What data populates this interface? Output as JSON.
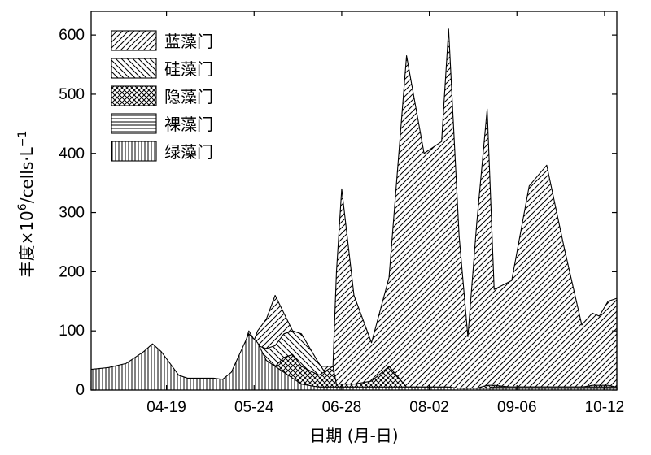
{
  "chart_data": {
    "type": "area",
    "xlabel": "日期 (月-日)",
    "ylabel_main": "丰度×10",
    "ylabel_exp": "6",
    "ylabel_unit": "/cells·L",
    "ylabel_unit_exp": "−1",
    "ylim": [
      0,
      640
    ],
    "yticks": [
      0,
      100,
      200,
      300,
      400,
      500,
      600
    ],
    "xlim": [
      0,
      30
    ],
    "xtick_positions": [
      4.3,
      9.3,
      14.3,
      19.3,
      24.3,
      29.3
    ],
    "xtick_labels": [
      "04-19",
      "05-24",
      "06-28",
      "08-02",
      "09-06",
      "10-12"
    ],
    "grid": false,
    "legend_position": "top-left",
    "x": [
      0,
      1,
      2,
      3,
      3.5,
      4,
      5,
      5.5,
      6,
      7,
      7.5,
      8,
      9,
      9.5,
      10,
      10.5,
      11,
      11.5,
      12,
      13,
      13.8,
      14,
      14.3,
      15,
      16,
      17,
      18,
      19,
      20,
      20.4,
      21,
      21.5,
      22,
      22.6,
      23,
      24,
      25,
      26,
      27,
      28,
      28.6,
      29,
      29.5,
      30
    ],
    "series": [
      {
        "name": "蓝藻门",
        "pattern": "diag-forward",
        "values": [
          0,
          0,
          0,
          0,
          0,
          0,
          0,
          0,
          0,
          0,
          0,
          0,
          60,
          100,
          120,
          160,
          130,
          100,
          80,
          40,
          40,
          200,
          340,
          160,
          80,
          190,
          565,
          400,
          420,
          610,
          260,
          90,
          280,
          475,
          170,
          185,
          345,
          380,
          240,
          110,
          130,
          125,
          150,
          155
        ]
      },
      {
        "name": "硅藻门",
        "pattern": "diag-back",
        "values": [
          0,
          0,
          0,
          0,
          0,
          0,
          0,
          0,
          0,
          0,
          0,
          0,
          100,
          75,
          70,
          75,
          95,
          100,
          95,
          45,
          10,
          5,
          5,
          5,
          5,
          5,
          5,
          5,
          5,
          5,
          3,
          3,
          3,
          3,
          5,
          5,
          5,
          5,
          5,
          5,
          5,
          5,
          5,
          5
        ]
      },
      {
        "name": "隐藻门",
        "pattern": "crosshatch",
        "values": [
          15,
          12,
          8,
          8,
          10,
          15,
          15,
          15,
          15,
          15,
          10,
          10,
          10,
          20,
          30,
          40,
          55,
          60,
          40,
          25,
          40,
          10,
          10,
          10,
          15,
          40,
          5,
          3,
          3,
          3,
          3,
          3,
          3,
          8,
          8,
          5,
          5,
          5,
          5,
          5,
          8,
          8,
          8,
          5
        ]
      },
      {
        "name": "裸藻门",
        "pattern": "horizontal",
        "values": [
          5,
          5,
          5,
          5,
          5,
          5,
          10,
          10,
          8,
          8,
          5,
          5,
          5,
          5,
          5,
          5,
          5,
          5,
          5,
          5,
          3,
          3,
          3,
          3,
          3,
          3,
          3,
          3,
          3,
          3,
          3,
          3,
          3,
          3,
          5,
          5,
          5,
          5,
          5,
          5,
          5,
          5,
          5,
          5
        ]
      },
      {
        "name": "绿藻门",
        "pattern": "vertical",
        "values": [
          35,
          38,
          45,
          65,
          78,
          65,
          25,
          20,
          20,
          20,
          18,
          30,
          95,
          80,
          50,
          40,
          30,
          20,
          10,
          5,
          5,
          5,
          5,
          5,
          5,
          5,
          5,
          5,
          5,
          5,
          3,
          3,
          3,
          3,
          3,
          3,
          3,
          3,
          3,
          3,
          3,
          3,
          3,
          3
        ]
      }
    ]
  }
}
